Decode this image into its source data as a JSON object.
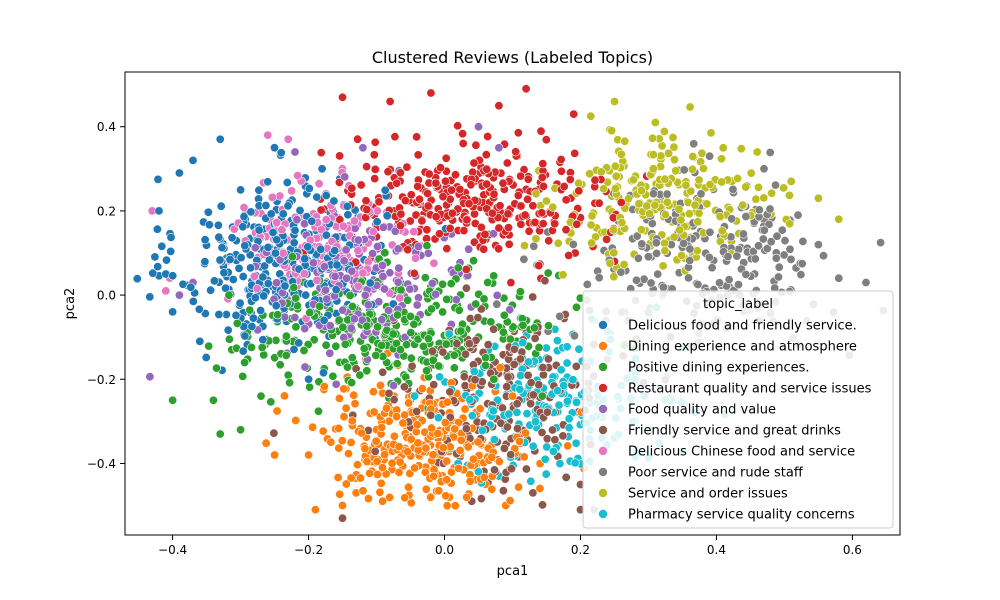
{
  "chart_data": {
    "type": "scatter",
    "title": "Clustered Reviews (Labeled Topics)",
    "xlabel": "pca1",
    "ylabel": "pca2",
    "xlim": [
      -0.47,
      0.67
    ],
    "ylim": [
      -0.57,
      0.53
    ],
    "xticks": [
      -0.4,
      -0.2,
      0.0,
      0.2,
      0.4,
      0.6
    ],
    "yticks": [
      -0.4,
      -0.2,
      0.0,
      0.2,
      0.4
    ],
    "xtick_labels": [
      "−0.4",
      "−0.2",
      "0.0",
      "0.2",
      "0.4",
      "0.6"
    ],
    "ytick_labels": [
      "−0.4",
      "−0.2",
      "0.0",
      "0.2",
      "0.4"
    ],
    "grid": false,
    "legend": {
      "title": "topic_label",
      "placement": "lower-right"
    },
    "series": [
      {
        "name": "Delicious food and friendly service.",
        "color": "#1f77b4",
        "center": [
          -0.24,
          0.08
        ],
        "spread": [
          0.075,
          0.1
        ],
        "n": 360,
        "points": [
          [
            -0.42,
            0.2
          ],
          [
            -0.39,
            0.29
          ],
          [
            -0.37,
            0.32
          ],
          [
            -0.33,
            0.37
          ],
          [
            -0.41,
            0.05
          ],
          [
            -0.4,
            -0.04
          ],
          [
            -0.36,
            -0.11
          ],
          [
            -0.2,
            -0.2
          ],
          [
            -0.3,
            0.25
          ],
          [
            -0.18,
            0.3
          ]
        ]
      },
      {
        "name": "Dining experience and atmosphere",
        "color": "#ff7f0e",
        "center": [
          -0.03,
          -0.35
        ],
        "spread": [
          0.08,
          0.07
        ],
        "n": 300,
        "points": [
          [
            -0.2,
            -0.38
          ],
          [
            -0.15,
            -0.5
          ],
          [
            -0.19,
            -0.51
          ],
          [
            -0.13,
            -0.47
          ],
          [
            0.09,
            -0.5
          ],
          [
            0.1,
            -0.24
          ],
          [
            -0.25,
            -0.38
          ],
          [
            0.0,
            -0.44
          ]
        ]
      },
      {
        "name": "Positive dining experiences.",
        "color": "#2ca02c",
        "center": [
          -0.07,
          -0.08
        ],
        "spread": [
          0.12,
          0.07
        ],
        "n": 330,
        "points": [
          [
            -0.4,
            -0.25
          ],
          [
            -0.34,
            -0.25
          ],
          [
            -0.33,
            -0.33
          ],
          [
            -0.3,
            -0.32
          ],
          [
            -0.27,
            -0.24
          ],
          [
            -0.23,
            -0.19
          ],
          [
            0.1,
            -0.08
          ],
          [
            0.05,
            -0.1
          ]
        ]
      },
      {
        "name": "Restaurant quality and service issues",
        "color": "#d62728",
        "center": [
          0.04,
          0.22
        ],
        "spread": [
          0.1,
          0.07
        ],
        "n": 330,
        "points": [
          [
            -0.15,
            0.47
          ],
          [
            -0.08,
            0.46
          ],
          [
            -0.02,
            0.48
          ],
          [
            0.12,
            0.49
          ],
          [
            0.08,
            0.45
          ],
          [
            0.19,
            0.43
          ],
          [
            0.25,
            0.08
          ],
          [
            0.26,
            0.22
          ]
        ]
      },
      {
        "name": "Food quality and value",
        "color": "#9467bd",
        "center": [
          -0.12,
          0.03
        ],
        "spread": [
          0.08,
          0.08
        ],
        "n": 180,
        "points": [
          [
            -0.39,
            0.0
          ],
          [
            -0.37,
            0.03
          ],
          [
            -0.22,
            0.34
          ],
          [
            -0.12,
            0.35
          ],
          [
            0.05,
            0.4
          ],
          [
            0.08,
            0.35
          ],
          [
            0.01,
            -0.07
          ]
        ]
      },
      {
        "name": "Friendly service and great drinks",
        "color": "#8c564b",
        "center": [
          0.08,
          -0.24
        ],
        "spread": [
          0.08,
          0.1
        ],
        "n": 220,
        "points": [
          [
            -0.15,
            -0.53
          ],
          [
            0.04,
            -0.49
          ],
          [
            0.13,
            -0.47
          ],
          [
            0.2,
            -0.45
          ],
          [
            0.2,
            -0.51
          ],
          [
            0.1,
            -0.13
          ]
        ]
      },
      {
        "name": "Delicious Chinese food and service",
        "color": "#e377c2",
        "center": [
          -0.18,
          0.12
        ],
        "spread": [
          0.07,
          0.08
        ],
        "n": 150,
        "points": [
          [
            -0.43,
            0.2
          ],
          [
            -0.41,
            0.01
          ],
          [
            -0.26,
            0.38
          ],
          [
            -0.23,
            0.37
          ],
          [
            -0.15,
            0.3
          ],
          [
            -0.32,
            0.08
          ]
        ]
      },
      {
        "name": "Poor service and rude staff",
        "color": "#7f7f7f",
        "center": [
          0.38,
          0.08
        ],
        "spread": [
          0.1,
          0.1
        ],
        "n": 240,
        "points": [
          [
            0.62,
            0.03
          ],
          [
            0.58,
            0.04
          ],
          [
            0.55,
            0.12
          ],
          [
            0.52,
            0.19
          ],
          [
            0.47,
            0.3
          ],
          [
            0.39,
            0.33
          ],
          [
            0.22,
            -0.51
          ]
        ]
      },
      {
        "name": "Service and order issues",
        "color": "#bcbd22",
        "center": [
          0.32,
          0.22
        ],
        "spread": [
          0.08,
          0.08
        ],
        "n": 230,
        "points": [
          [
            0.25,
            0.46
          ],
          [
            0.31,
            0.41
          ],
          [
            0.41,
            0.35
          ],
          [
            0.46,
            0.34
          ],
          [
            0.51,
            0.27
          ],
          [
            0.55,
            0.23
          ],
          [
            0.58,
            0.18
          ]
        ]
      },
      {
        "name": "Pharmacy service quality concerns",
        "color": "#17becf",
        "center": [
          0.16,
          -0.25
        ],
        "spread": [
          0.08,
          0.08
        ],
        "n": 200,
        "points": [
          [
            0.02,
            -0.4
          ],
          [
            0.05,
            -0.42
          ],
          [
            0.08,
            -0.43
          ],
          [
            0.25,
            -0.34
          ],
          [
            0.3,
            -0.38
          ],
          [
            0.28,
            -0.3
          ],
          [
            0.22,
            -0.06
          ]
        ]
      }
    ]
  }
}
